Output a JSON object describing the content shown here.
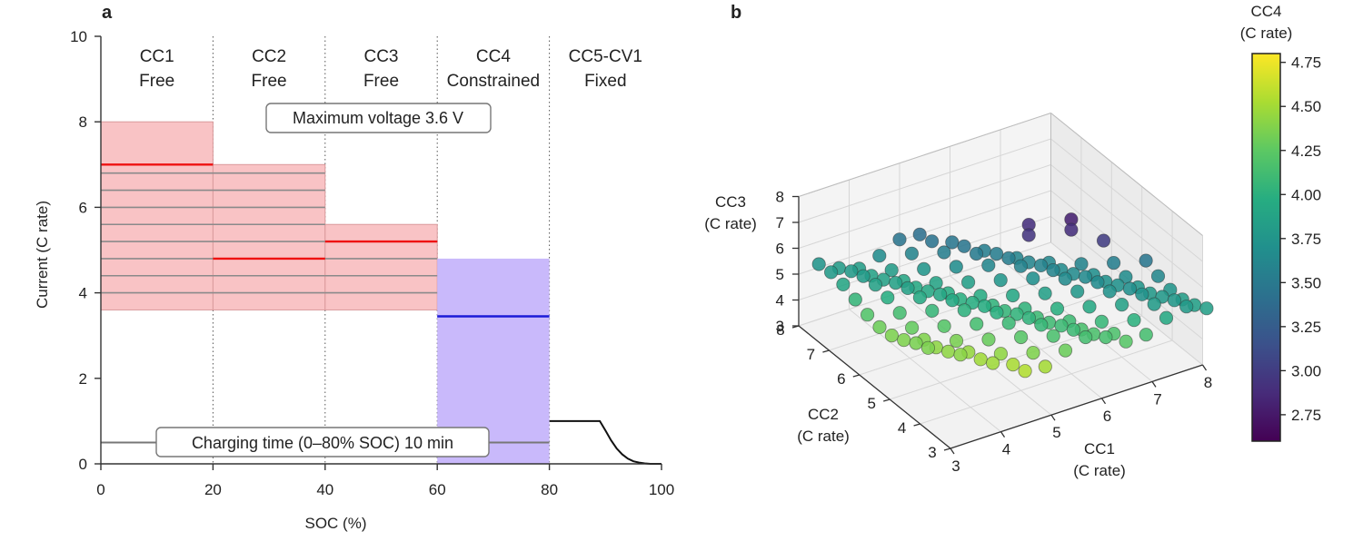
{
  "chart_data": [
    {
      "panel": "a",
      "type": "line",
      "xlabel": "SOC (%)",
      "ylabel": "Current (C rate)",
      "xlim": [
        0,
        100
      ],
      "ylim": [
        0,
        10
      ],
      "xticks": [
        0,
        20,
        40,
        60,
        80,
        100
      ],
      "yticks": [
        0,
        2,
        4,
        6,
        8,
        10
      ],
      "segments": [
        {
          "name": "CC1",
          "mode": "Free",
          "soc_range": [
            0,
            20
          ],
          "band": [
            3.6,
            8.0
          ],
          "selected": 7.0
        },
        {
          "name": "CC2",
          "mode": "Free",
          "soc_range": [
            20,
            40
          ],
          "band": [
            3.6,
            7.0
          ],
          "selected": 4.8
        },
        {
          "name": "CC3",
          "mode": "Free",
          "soc_range": [
            40,
            60
          ],
          "band": [
            3.6,
            5.6
          ],
          "selected": 5.2
        },
        {
          "name": "CC4",
          "mode": "Constrained",
          "soc_range": [
            60,
            80
          ],
          "band": [
            0,
            4.8
          ],
          "selected": 3.45
        },
        {
          "name": "CC5-CV1",
          "mode": "Fixed",
          "soc_range": [
            80,
            100
          ]
        }
      ],
      "grid_current_levels": [
        3.6,
        4.0,
        4.4,
        4.8,
        5.2,
        5.6,
        6.0,
        6.4,
        6.8,
        7.0
      ],
      "cc5_cv1_curve": {
        "x": [
          80,
          89,
          90,
          91,
          92,
          93,
          94,
          95,
          96,
          97,
          98,
          100
        ],
        "y": [
          1.0,
          1.0,
          0.78,
          0.55,
          0.36,
          0.22,
          0.12,
          0.06,
          0.03,
          0.01,
          0.0,
          0.0
        ]
      },
      "charging_time_line": {
        "y": 0.5,
        "x_range": [
          0,
          80
        ]
      },
      "annotations": [
        "Maximum voltage 3.6 V",
        "Charging time (0–80% SOC) 10 min"
      ],
      "colors": {
        "band": "#f9c3c5",
        "band_edge": "#d99a9c",
        "selected_cc": "#ee1111",
        "cc4_band": "#c9b9fb",
        "cc4_selected": "#1a1ad8",
        "gridline": "#8a8a8a"
      }
    },
    {
      "panel": "b",
      "type": "scatter",
      "projection": "3d",
      "xlabel": "CC1\n(C rate)",
      "ylabel": "CC2\n(C rate)",
      "zlabel": "CC3\n(C rate)",
      "xticks": [
        3,
        4,
        5,
        6,
        7,
        8
      ],
      "yticks": [
        3,
        4,
        5,
        6,
        7,
        8
      ],
      "zticks": [
        3,
        4,
        5,
        6,
        7,
        8
      ],
      "xlim": [
        3,
        8
      ],
      "ylim": [
        3,
        8
      ],
      "zlim": [
        3,
        8
      ],
      "colorbar": {
        "label": "CC4\n(C rate)",
        "ticks": [
          2.75,
          3.0,
          3.25,
          3.5,
          3.75,
          4.0,
          4.25,
          4.5,
          4.75
        ],
        "range": [
          2.6,
          4.8
        ],
        "colormap": "viridis"
      },
      "points_description_note": "",
      "color_stops": [
        "#440154",
        "#472c7a",
        "#3b518b",
        "#2c718e",
        "#21908d",
        "#27ad81",
        "#5cc863",
        "#aadc32",
        "#fde725"
      ]
    }
  ],
  "labels": {
    "panel_a": "a",
    "panel_b": "b",
    "seg_names": [
      "CC1",
      "CC2",
      "CC3",
      "CC4",
      "CC5-CV1"
    ],
    "seg_modes": [
      "Free",
      "Free",
      "Free",
      "Constrained",
      "Fixed"
    ],
    "max_voltage": "Maximum voltage 3.6 V",
    "charging_time": "Charging time (0–80% SOC) 10 min",
    "xlabel_a": "SOC (%)",
    "ylabel_a": "Current (C rate)",
    "cc1_line1": "CC1",
    "cc1_line2": "(C rate)",
    "cc2_line1": "CC2",
    "cc2_line2": "(C rate)",
    "cc3_line1": "CC3",
    "cc3_line2": "(C rate)",
    "cb_line1": "CC4",
    "cb_line2": "(C rate)"
  }
}
